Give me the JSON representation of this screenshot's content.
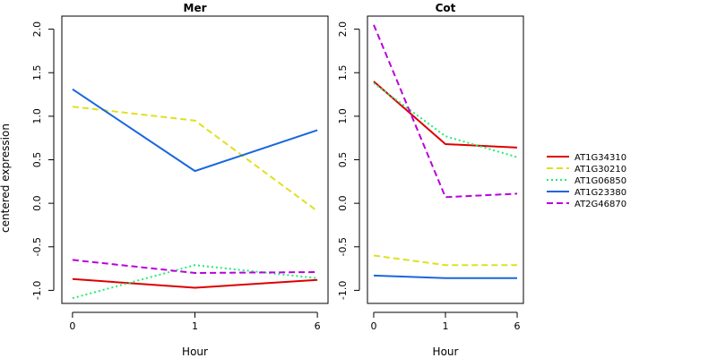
{
  "ylabel": "centered expression",
  "legend": {
    "position": "right",
    "entries": [
      {
        "name": "AT1G34310",
        "color": "#dd0000",
        "dash": "solid"
      },
      {
        "name": "AT1G30210",
        "color": "#e0e020",
        "dash": "dashed"
      },
      {
        "name": "AT1G06850",
        "color": "#20ee70",
        "dash": "dotted"
      },
      {
        "name": "AT1G23380",
        "color": "#1a66dd",
        "dash": "solid"
      },
      {
        "name": "AT2G46870",
        "color": "#bb00dd",
        "dash": "dashed"
      }
    ]
  },
  "chart_data": [
    {
      "type": "line",
      "title": "Mer",
      "xlabel": "Hour",
      "ylabel": "centered expression",
      "categories": [
        "0",
        "1",
        "6"
      ],
      "ylim": [
        -1.15,
        2.15
      ],
      "yticks": [
        -1.0,
        -0.5,
        0.0,
        0.5,
        1.0,
        1.5,
        2.0
      ],
      "grid": false,
      "series": [
        {
          "name": "AT1G34310",
          "values": [
            -0.87,
            -0.97,
            -0.88
          ]
        },
        {
          "name": "AT1G30210",
          "values": [
            1.11,
            0.95,
            -0.09
          ]
        },
        {
          "name": "AT1G06850",
          "values": [
            -1.09,
            -0.71,
            -0.86
          ]
        },
        {
          "name": "AT1G23380",
          "values": [
            1.31,
            0.37,
            0.84
          ]
        },
        {
          "name": "AT2G46870",
          "values": [
            -0.65,
            -0.8,
            -0.79
          ]
        }
      ]
    },
    {
      "type": "line",
      "title": "Cot",
      "xlabel": "Hour",
      "ylabel": "",
      "categories": [
        "0",
        "1",
        "6"
      ],
      "ylim": [
        -1.15,
        2.15
      ],
      "yticks": [
        -1.0,
        -0.5,
        0.0,
        0.5,
        1.0,
        1.5,
        2.0
      ],
      "grid": false,
      "series": [
        {
          "name": "AT1G34310",
          "values": [
            1.4,
            0.68,
            0.64
          ]
        },
        {
          "name": "AT1G30210",
          "values": [
            -0.6,
            -0.71,
            -0.71
          ]
        },
        {
          "name": "AT1G06850",
          "values": [
            1.38,
            0.77,
            0.53
          ]
        },
        {
          "name": "AT1G23380",
          "values": [
            -0.83,
            -0.86,
            -0.86
          ]
        },
        {
          "name": "AT2G46870",
          "values": [
            2.05,
            0.07,
            0.11
          ]
        }
      ]
    }
  ]
}
